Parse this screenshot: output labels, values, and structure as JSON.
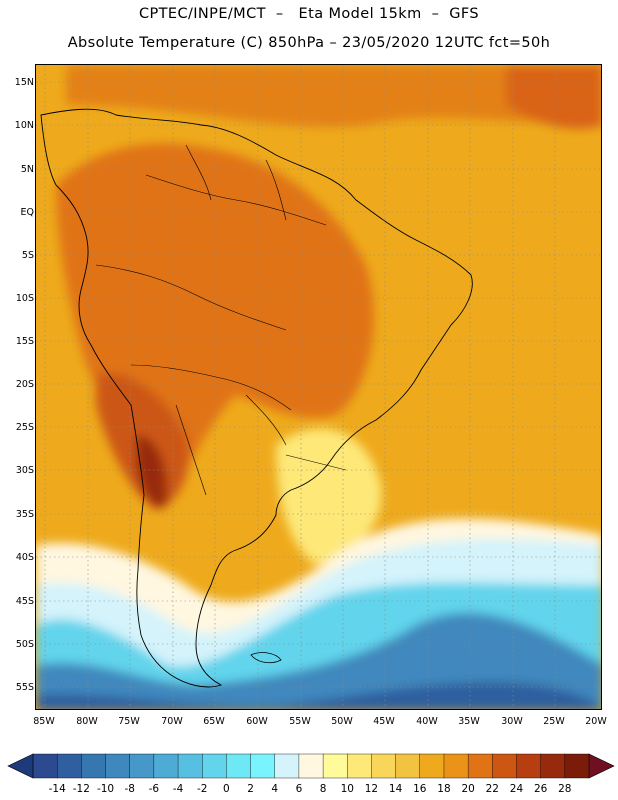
{
  "header": {
    "line1": "CPTEC/INPE/MCT  –   Eta Model 15km  –  GFS",
    "line2": "Absolute Temperature (C) 850hPa – 23/05/2020 12UTC fct=50h"
  },
  "lat_labels": [
    "15N",
    "10N",
    "5N",
    "EQ",
    "5S",
    "10S",
    "15S",
    "20S",
    "25S",
    "30S",
    "35S",
    "40S",
    "45S",
    "50S",
    "55S"
  ],
  "lon_labels": [
    "85W",
    "80W",
    "75W",
    "70W",
    "65W",
    "60W",
    "55W",
    "50W",
    "45W",
    "40W",
    "35W",
    "30W",
    "25W",
    "20W"
  ],
  "colorbar": {
    "ticks": [
      "-14",
      "-12",
      "-10",
      "-8",
      "-6",
      "-4",
      "-2",
      "0",
      "2",
      "4",
      "6",
      "8",
      "10",
      "12",
      "14",
      "16",
      "18",
      "20",
      "22",
      "24",
      "26",
      "28"
    ],
    "colors": [
      "#2b4a8f",
      "#2f5f9f",
      "#3777b0",
      "#3f88bd",
      "#4698c9",
      "#4eabd6",
      "#57c0e2",
      "#62d4ec",
      "#6ee8f4",
      "#79f4ff",
      "#d4f3fb",
      "#fff7e0",
      "#fffb9a",
      "#fde878",
      "#f8d65a",
      "#f2c241",
      "#eeaa1c",
      "#ea9318",
      "#e07315",
      "#cc5612",
      "#b63e10",
      "#972a0c",
      "#7a1c09"
    ]
  }
}
